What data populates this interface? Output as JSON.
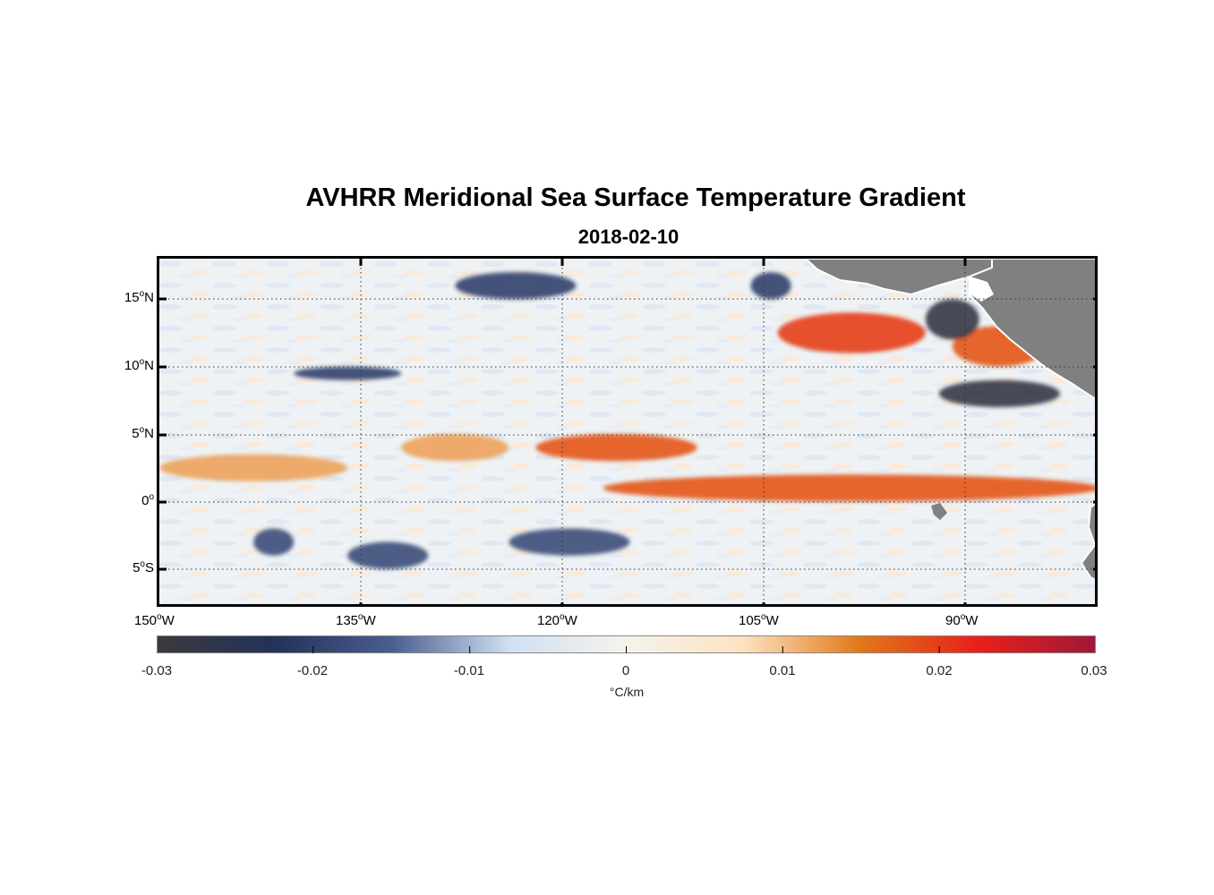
{
  "figure": {
    "title": "AVHRR Meridional Sea Surface Temperature Gradient",
    "subtitle": "2018-02-10"
  },
  "map": {
    "lon_ticks": [
      {
        "deg": "150",
        "hemi": "W"
      },
      {
        "deg": "135",
        "hemi": "W"
      },
      {
        "deg": "120",
        "hemi": "W"
      },
      {
        "deg": "105",
        "hemi": "W"
      },
      {
        "deg": "90",
        "hemi": "W"
      }
    ],
    "lat_ticks": [
      {
        "deg": "15",
        "hemi": "N"
      },
      {
        "deg": "10",
        "hemi": "N"
      },
      {
        "deg": "5",
        "hemi": "N"
      },
      {
        "deg": "0",
        "hemi": ""
      },
      {
        "deg": "5",
        "hemi": "S"
      }
    ],
    "land_color": "#808080",
    "grid": "dotted"
  },
  "colorbar": {
    "ticks": [
      "-0.03",
      "-0.02",
      "-0.01",
      "0",
      "0.01",
      "0.02",
      "0.03"
    ],
    "label": "°C/km",
    "range": [
      -0.03,
      0.03
    ],
    "colors": [
      "#3a3a3e",
      "#23325a",
      "#4a5e8e",
      "#cfe0f2",
      "#f5f3ec",
      "#fde2c0",
      "#e07818",
      "#e8201a",
      "#a01838"
    ]
  },
  "chart_data": {
    "type": "heatmap",
    "title": "AVHRR Meridional Sea Surface Temperature Gradient",
    "subtitle": "2018-02-10",
    "xlabel": "",
    "ylabel": "",
    "x_range": [
      -150,
      -80
    ],
    "y_range": [
      -8,
      18
    ],
    "color_range": [
      -0.03,
      0.03
    ],
    "color_label": "°C/km",
    "features": [
      {
        "value": 0.012,
        "lon": [
          -150,
          -136
        ],
        "lat": [
          1.5,
          3.5
        ]
      },
      {
        "value": 0.012,
        "lon": [
          -132,
          -124
        ],
        "lat": [
          3,
          5
        ]
      },
      {
        "value": 0.018,
        "lon": [
          -122,
          -110
        ],
        "lat": [
          3,
          5
        ]
      },
      {
        "value": 0.018,
        "lon": [
          -117,
          -80
        ],
        "lat": [
          0,
          2
        ]
      },
      {
        "value": 0.02,
        "lon": [
          -104,
          -93
        ],
        "lat": [
          11,
          14
        ]
      },
      {
        "value": 0.018,
        "lon": [
          -91,
          -84
        ],
        "lat": [
          10,
          13
        ]
      },
      {
        "value": -0.028,
        "lon": [
          -93,
          -89
        ],
        "lat": [
          12,
          15
        ]
      },
      {
        "value": -0.028,
        "lon": [
          -92,
          -83
        ],
        "lat": [
          7,
          9
        ]
      },
      {
        "value": -0.018,
        "lon": [
          -143,
          -140
        ],
        "lat": [
          -4,
          -2
        ]
      },
      {
        "value": -0.018,
        "lon": [
          -136,
          -130
        ],
        "lat": [
          -5,
          -3
        ]
      },
      {
        "value": -0.018,
        "lon": [
          -124,
          -115
        ],
        "lat": [
          -4,
          -2
        ]
      },
      {
        "value": -0.02,
        "lon": [
          -140,
          -132
        ],
        "lat": [
          9,
          10
        ]
      },
      {
        "value": -0.02,
        "lon": [
          -128,
          -119
        ],
        "lat": [
          15,
          17
        ]
      },
      {
        "value": -0.02,
        "lon": [
          -106,
          -103
        ],
        "lat": [
          15,
          17
        ]
      }
    ]
  }
}
